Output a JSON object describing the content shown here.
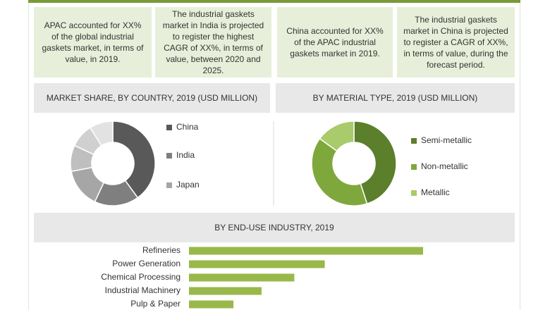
{
  "callouts": [
    "APAC accounted for XX% of the global industrial gaskets market, in terms of value, in 2019.",
    "The industrial gaskets market in India is projected to register the highest CAGR of XX%, in terms of value, between 2020 and 2025.",
    "China accounted for XX% of the APAC industrial gaskets market in 2019.",
    "The industrial gaskets market in China is projected to register a CAGR of XX%, in terms of value, during the forecast period."
  ],
  "chart_data": [
    {
      "type": "donut",
      "title": "MARKET SHARE, BY COUNTRY, 2019 (USD MILLION)",
      "categories": [
        "China",
        "India",
        "Japan",
        null,
        null,
        null
      ],
      "values": [
        40,
        17,
        15,
        10,
        9,
        9
      ],
      "colors": [
        "#595959",
        "#7f7f7f",
        "#a6a6a6",
        "#bfbfbf",
        "#d0d0d0",
        "#e2e2e2"
      ]
    },
    {
      "type": "donut",
      "title": "BY MATERIAL TYPE, 2019 (USD MILLION)",
      "categories": [
        "Semi-metallic",
        "Non-metallic",
        "Metallic"
      ],
      "values": [
        45,
        40,
        15
      ],
      "colors": [
        "#5b7f2b",
        "#7fa83c",
        "#a9cb6b"
      ]
    },
    {
      "type": "bar",
      "orientation": "horizontal",
      "title": "BY END-USE INDUSTRY, 2019",
      "categories": [
        "Refineries",
        "Power Generation",
        "Chemical Processing",
        "Industrial Machinery",
        "Pulp & Paper"
      ],
      "values": [
        100,
        58,
        45,
        31,
        19
      ],
      "color": "#99b84a"
    }
  ]
}
